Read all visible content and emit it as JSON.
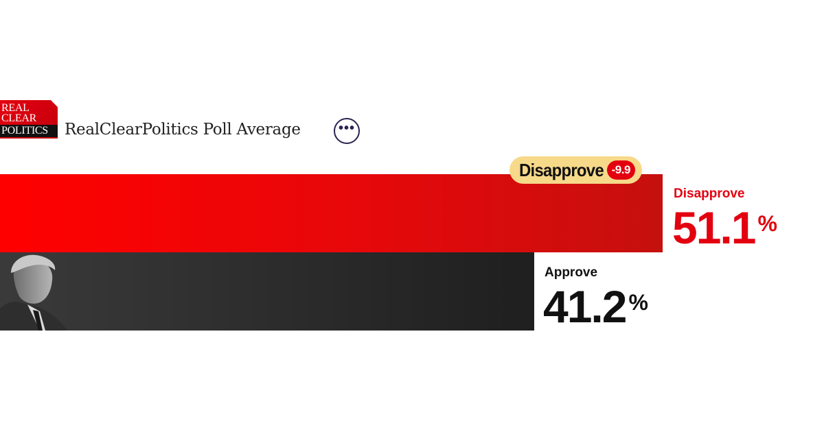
{
  "source": {
    "logo_lines": [
      "REAL",
      "CLEAR",
      "POLITICS"
    ],
    "title": "RealClearPolitics Poll Average",
    "more_icon": "ellipsis-icon",
    "more_glyph": "•••"
  },
  "colors": {
    "disapprove": "#e3000f",
    "approve": "#1f1f1f",
    "badge_bg": "#f7d98a"
  },
  "chart_data": {
    "type": "bar",
    "orientation": "horizontal",
    "categories": [
      "Disapprove",
      "Approve"
    ],
    "values": [
      51.1,
      41.2
    ],
    "unit": "%",
    "spread": {
      "label": "Disapprove",
      "value": "-9.9"
    },
    "xlim": [
      0,
      63
    ]
  }
}
